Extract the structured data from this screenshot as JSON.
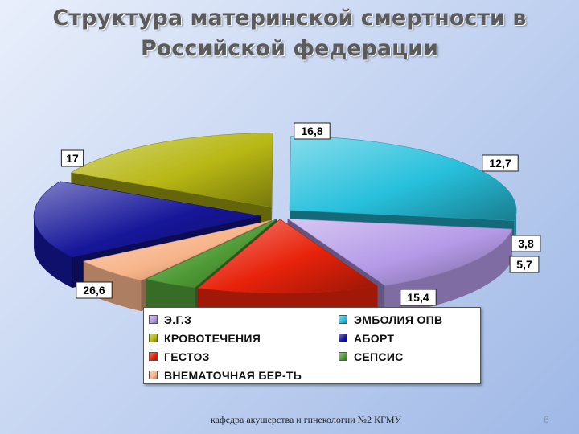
{
  "slide": {
    "title_line1": "Структура материнской смертности в",
    "title_line2": "Российской федерации",
    "footer": "кафедра акушерства и гинекологии №2 КГМУ",
    "page_number": "6"
  },
  "chart_data": {
    "type": "pie",
    "style": "3d-exploded",
    "legend_position": "bottom",
    "slices": [
      {
        "key": "eg3",
        "label": "Э.Г.З",
        "value": 15.4,
        "color": "#b59ae8"
      },
      {
        "key": "gestoz",
        "label": "ГЕСТОЗ",
        "value": 12.7,
        "color": "#e8220a"
      },
      {
        "key": "sepsis",
        "label": "СЕПСИС",
        "value": 3.8,
        "color": "#4f9a36"
      },
      {
        "key": "vnemat",
        "label": "ВНЕМАТОЧНАЯ БЕР-ТЬ",
        "value": 5.7,
        "color": "#f7b48a"
      },
      {
        "key": "abort",
        "label": "АБОРТ",
        "value": 16.8,
        "color": "#16169a"
      },
      {
        "key": "krovot",
        "label": "КРОВОТЕЧЕНИЯ",
        "value": 17,
        "color": "#b7b714"
      },
      {
        "key": "emboliya",
        "label": "ЭМБОЛИЯ ОПВ",
        "value": 26.6,
        "color": "#27c0dc"
      }
    ],
    "legend": [
      {
        "key": "eg3",
        "label": "Э.Г.З"
      },
      {
        "key": "emboliya",
        "label": "ЭМБОЛИЯ ОПВ"
      },
      {
        "key": "krovot",
        "label": "КРОВОТЕЧЕНИЯ"
      },
      {
        "key": "abort",
        "label": "АБОРТ"
      },
      {
        "key": "gestoz",
        "label": "ГЕСТОЗ"
      },
      {
        "key": "sepsis",
        "label": "СЕПСИС"
      },
      {
        "key": "vnemat",
        "label": "ВНЕМАТОЧНАЯ БЕР-ТЬ"
      }
    ],
    "data_labels": [
      {
        "key": "abort",
        "text": "16,8"
      },
      {
        "key": "krovot",
        "text": "17"
      },
      {
        "key": "gestoz",
        "text": "12,7"
      },
      {
        "key": "sepsis",
        "text": "3,8"
      },
      {
        "key": "vnemat",
        "text": "5,7"
      },
      {
        "key": "eg3",
        "text": "15,4"
      },
      {
        "key": "emboliya",
        "text": "26,6"
      }
    ]
  }
}
